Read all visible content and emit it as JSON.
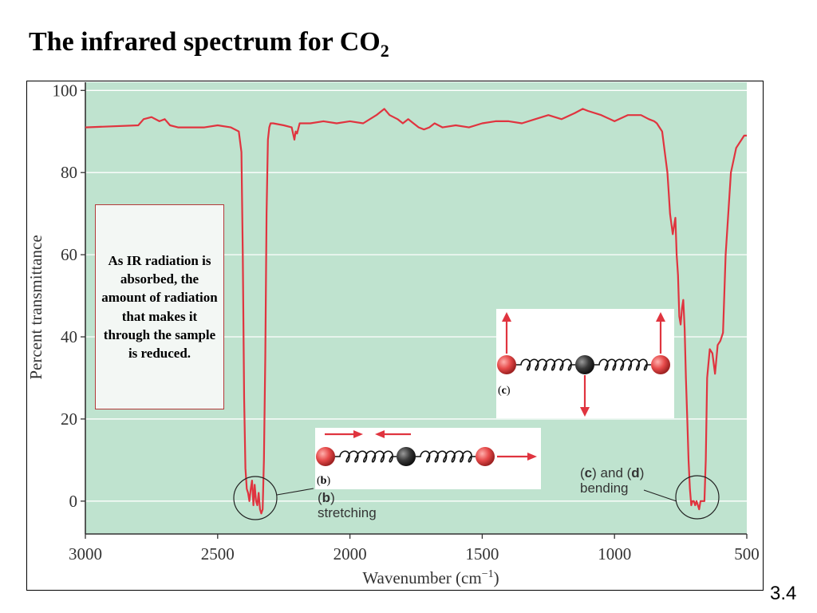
{
  "slide": {
    "title": "The infrared spectrum for CO",
    "title_subscript": "2",
    "number": "3.4"
  },
  "callout": {
    "text": "As IR radiation is absorbed, the amount of radiation  that makes it through the sample is reduced."
  },
  "insets": {
    "c": {
      "label": "c"
    },
    "b": {
      "label": "b"
    }
  },
  "annotations": {
    "stretching": {
      "label": "b",
      "text": "stretching"
    },
    "bending": {
      "label_c": "c",
      "and": "and",
      "label_d": "d",
      "text": "bending"
    }
  },
  "colors": {
    "plot_bg": "#bfe3cf",
    "curve": "#e0343f",
    "oxygen_atom": "#e64a4a",
    "carbon_atom": "#333333",
    "arrow": "#e0343f"
  },
  "chart_data": {
    "type": "line",
    "xlabel": "Wavenumber (cm",
    "xlabel_sup": "−1",
    "xlabel_end": ")",
    "ylabel": "Percent transmittance",
    "xlim": [
      3000,
      500
    ],
    "ylim": [
      -8,
      102
    ],
    "grid": true,
    "x_ticks": [
      3000,
      2500,
      2000,
      1500,
      1000,
      500
    ],
    "y_ticks": [
      0,
      20,
      40,
      60,
      80,
      100
    ],
    "series": [
      {
        "x": [
          3000,
          2800,
          2780,
          2750,
          2720,
          2700,
          2680,
          2650,
          2600,
          2550,
          2500,
          2450,
          2420,
          2410,
          2405,
          2400,
          2395,
          2390,
          2385,
          2380,
          2375,
          2370,
          2365,
          2360,
          2355,
          2350,
          2345,
          2340,
          2335,
          2330,
          2325,
          2320,
          2315,
          2310,
          2305,
          2300,
          2290,
          2250,
          2220,
          2210,
          2205,
          2200,
          2190,
          2150,
          2100,
          2050,
          2000,
          1950,
          1900,
          1870,
          1850,
          1820,
          1800,
          1780,
          1760,
          1740,
          1720,
          1700,
          1680,
          1650,
          1600,
          1550,
          1500,
          1450,
          1400,
          1350,
          1300,
          1250,
          1200,
          1150,
          1120,
          1100,
          1050,
          1000,
          950,
          900,
          870,
          850,
          840,
          830,
          820,
          810,
          800,
          795,
          790,
          780,
          775,
          770,
          765,
          760,
          755,
          750,
          745,
          740,
          735,
          730,
          725,
          720,
          715,
          710,
          705,
          700,
          695,
          690,
          685,
          680,
          675,
          670,
          665,
          660,
          655,
          650,
          640,
          630,
          620,
          610,
          600,
          590,
          580,
          560,
          540,
          520,
          510,
          500
        ],
        "y": [
          91,
          91.5,
          93,
          93.5,
          92.5,
          93,
          91.5,
          91,
          91,
          91,
          91.5,
          91,
          90,
          85,
          60,
          25,
          8,
          3,
          2,
          0,
          3,
          5,
          -1,
          4,
          0,
          -1,
          2,
          -2,
          -3,
          -2,
          10,
          35,
          70,
          88,
          91,
          92,
          92,
          91.5,
          91,
          88,
          90,
          89.5,
          92,
          92,
          92.5,
          92,
          92.5,
          92,
          94,
          95.5,
          94,
          93,
          92,
          93,
          92,
          91,
          90.5,
          91,
          92,
          91,
          91.5,
          91,
          92,
          92.5,
          92.5,
          92,
          93,
          94,
          93,
          94.5,
          95.5,
          95,
          94,
          92.5,
          94,
          94,
          93,
          92.5,
          92,
          91,
          90,
          85,
          80,
          75,
          70,
          65,
          67,
          69,
          60,
          55,
          45,
          43,
          47,
          49,
          42,
          30,
          20,
          10,
          3,
          -1,
          0,
          0,
          -1,
          0,
          -1,
          -2,
          0,
          0,
          0,
          0,
          10,
          30,
          37,
          36,
          31,
          38,
          39,
          41,
          60,
          80,
          86,
          88,
          89,
          89
        ]
      }
    ]
  }
}
